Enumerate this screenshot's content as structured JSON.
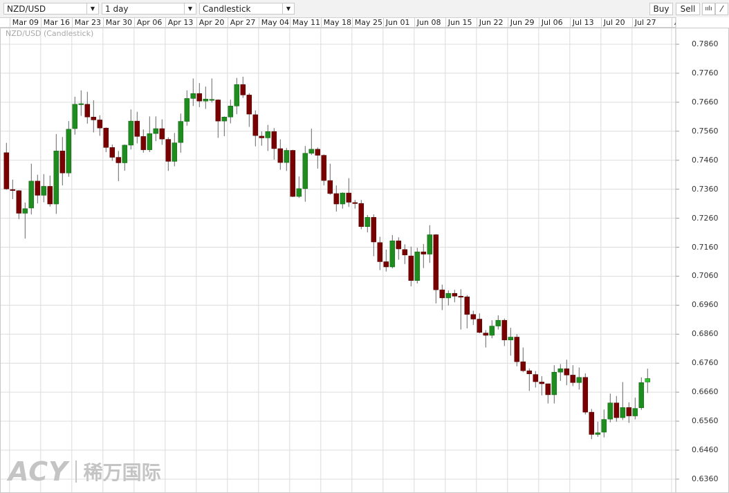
{
  "toolbar": {
    "symbol": "NZD/USD",
    "interval": "1 day",
    "chart_type": "Candlestick",
    "buy_label": "Buy",
    "sell_label": "Sell",
    "indicators_icon": "indicators-icon",
    "draw_icon": "line-draw-icon"
  },
  "date_axis": [
    "Mar 09",
    "Mar 16",
    "Mar 23",
    "Mar 30",
    "Apr 06",
    "Apr 13",
    "Apr 20",
    "Apr 27",
    "May 04",
    "May 11",
    "May 18",
    "May 25",
    "Jun 01",
    "Jun 08",
    "Jun 15",
    "Jun 22",
    "Jun 29",
    "Jul 06",
    "Jul 13",
    "Jul 20",
    "Jul 27",
    "A"
  ],
  "series_title": "NZD/USD (Candlestick)",
  "watermark": {
    "brand": "ACY",
    "chinese": "稀万国际"
  },
  "colors": {
    "up": "#1f8c1f",
    "down": "#780000",
    "last_up": "#2ec42e",
    "wick": "#666666",
    "grid": "#dcdcdc"
  },
  "chart_data": {
    "type": "candlestick",
    "title": "NZD/USD (Candlestick)",
    "ylim": [
      0.633,
      0.791
    ],
    "yticks": [
      "0.7860",
      "0.7760",
      "0.7660",
      "0.7560",
      "0.7460",
      "0.7360",
      "0.7260",
      "0.7160",
      "0.7060",
      "0.6960",
      "0.6860",
      "0.6760",
      "0.6660",
      "0.6560",
      "0.6460",
      "0.6360"
    ],
    "grid": true,
    "ohlc_order": [
      "open",
      "high",
      "low",
      "close"
    ],
    "dates": [
      "Mar 06",
      "Mar 09",
      "Mar 10",
      "Mar 11",
      "Mar 12",
      "Mar 13",
      "Mar 16",
      "Mar 17",
      "Mar 18",
      "Mar 19",
      "Mar 20",
      "Mar 23",
      "Mar 24",
      "Mar 25",
      "Mar 26",
      "Mar 27",
      "Mar 30",
      "Mar 31",
      "Apr 01",
      "Apr 02",
      "Apr 03",
      "Apr 06",
      "Apr 07",
      "Apr 08",
      "Apr 09",
      "Apr 10",
      "Apr 13",
      "Apr 14",
      "Apr 15",
      "Apr 16",
      "Apr 17",
      "Apr 20",
      "Apr 21",
      "Apr 22",
      "Apr 23",
      "Apr 24",
      "Apr 27",
      "Apr 28",
      "Apr 29",
      "Apr 30",
      "May 01",
      "May 04",
      "May 05",
      "May 06",
      "May 07",
      "May 08",
      "May 11",
      "May 12",
      "May 13",
      "May 14",
      "May 15",
      "May 18",
      "May 19",
      "May 20",
      "May 21",
      "May 22",
      "May 25",
      "May 26",
      "May 27",
      "May 28",
      "May 29",
      "Jun 01",
      "Jun 02",
      "Jun 03",
      "Jun 04",
      "Jun 05",
      "Jun 08",
      "Jun 09",
      "Jun 10",
      "Jun 11",
      "Jun 12",
      "Jun 15",
      "Jun 16",
      "Jun 17",
      "Jun 18",
      "Jun 19",
      "Jun 22",
      "Jun 23",
      "Jun 24",
      "Jun 25",
      "Jun 26",
      "Jun 29",
      "Jun 30",
      "Jul 01",
      "Jul 02",
      "Jul 03",
      "Jul 06",
      "Jul 07",
      "Jul 08",
      "Jul 09",
      "Jul 10",
      "Jul 13",
      "Jul 14",
      "Jul 15",
      "Jul 16",
      "Jul 17",
      "Jul 20",
      "Jul 21",
      "Jul 22",
      "Jul 23",
      "Jul 24",
      "Jul 27",
      "Jul 28",
      "Jul 29"
    ],
    "ohlc": [
      [
        0.7486,
        0.752,
        0.7358,
        0.7361
      ],
      [
        0.7359,
        0.7393,
        0.7326,
        0.7358
      ],
      [
        0.7355,
        0.7357,
        0.7257,
        0.7277
      ],
      [
        0.7277,
        0.7314,
        0.719,
        0.7293
      ],
      [
        0.7295,
        0.7448,
        0.7273,
        0.7388
      ],
      [
        0.7388,
        0.741,
        0.7311,
        0.7339
      ],
      [
        0.7339,
        0.7412,
        0.7315,
        0.737
      ],
      [
        0.737,
        0.7407,
        0.73,
        0.7309
      ],
      [
        0.7309,
        0.755,
        0.7275,
        0.7492
      ],
      [
        0.7492,
        0.754,
        0.7373,
        0.7416
      ],
      [
        0.7416,
        0.7595,
        0.7403,
        0.7567
      ],
      [
        0.7569,
        0.7679,
        0.7548,
        0.7653
      ],
      [
        0.7654,
        0.7701,
        0.7613,
        0.7655
      ],
      [
        0.7653,
        0.7696,
        0.7586,
        0.7609
      ],
      [
        0.7609,
        0.7667,
        0.7556,
        0.7599
      ],
      [
        0.7599,
        0.7615,
        0.7544,
        0.7571
      ],
      [
        0.7571,
        0.7573,
        0.7488,
        0.7504
      ],
      [
        0.7504,
        0.7514,
        0.7458,
        0.747
      ],
      [
        0.747,
        0.7492,
        0.7388,
        0.7451
      ],
      [
        0.7451,
        0.7514,
        0.7424,
        0.7512
      ],
      [
        0.7512,
        0.7635,
        0.7497,
        0.7595
      ],
      [
        0.7595,
        0.7627,
        0.7518,
        0.7542
      ],
      [
        0.7542,
        0.7566,
        0.7486,
        0.7496
      ],
      [
        0.7496,
        0.7611,
        0.7488,
        0.7552
      ],
      [
        0.7552,
        0.7611,
        0.7526,
        0.7569
      ],
      [
        0.7569,
        0.7601,
        0.7513,
        0.7533
      ],
      [
        0.7532,
        0.7539,
        0.7423,
        0.7456
      ],
      [
        0.7456,
        0.7554,
        0.7439,
        0.752
      ],
      [
        0.7521,
        0.7621,
        0.7486,
        0.7594
      ],
      [
        0.7594,
        0.7701,
        0.7579,
        0.7673
      ],
      [
        0.7673,
        0.7742,
        0.7647,
        0.769
      ],
      [
        0.769,
        0.7726,
        0.7643,
        0.7664
      ],
      [
        0.7664,
        0.7714,
        0.7637,
        0.7671
      ],
      [
        0.7669,
        0.7742,
        0.7659,
        0.767
      ],
      [
        0.7668,
        0.767,
        0.7537,
        0.7595
      ],
      [
        0.7595,
        0.7611,
        0.7543,
        0.7609
      ],
      [
        0.7609,
        0.7669,
        0.7587,
        0.7647
      ],
      [
        0.7647,
        0.7744,
        0.7619,
        0.7721
      ],
      [
        0.7721,
        0.7748,
        0.7675,
        0.7685
      ],
      [
        0.7685,
        0.7691,
        0.7575,
        0.7619
      ],
      [
        0.7617,
        0.7632,
        0.7508,
        0.7545
      ],
      [
        0.7543,
        0.7559,
        0.751,
        0.7537
      ],
      [
        0.7537,
        0.7582,
        0.7492,
        0.7559
      ],
      [
        0.7559,
        0.7571,
        0.7462,
        0.75
      ],
      [
        0.75,
        0.7532,
        0.7427,
        0.7452
      ],
      [
        0.7452,
        0.7502,
        0.7423,
        0.7494
      ],
      [
        0.7494,
        0.7496,
        0.7333,
        0.7335
      ],
      [
        0.7335,
        0.7404,
        0.733,
        0.7362
      ],
      [
        0.7362,
        0.7509,
        0.7317,
        0.7484
      ],
      [
        0.7484,
        0.7569,
        0.7478,
        0.7498
      ],
      [
        0.7498,
        0.7504,
        0.7431,
        0.7477
      ],
      [
        0.7477,
        0.748,
        0.7373,
        0.739
      ],
      [
        0.739,
        0.7448,
        0.7341,
        0.7345
      ],
      [
        0.7345,
        0.7373,
        0.7283,
        0.7309
      ],
      [
        0.7309,
        0.7349,
        0.7293,
        0.7347
      ],
      [
        0.7347,
        0.7398,
        0.7299,
        0.7315
      ],
      [
        0.7314,
        0.7323,
        0.7293,
        0.7313
      ],
      [
        0.7311,
        0.7323,
        0.7222,
        0.7231
      ],
      [
        0.7231,
        0.7271,
        0.7211,
        0.7263
      ],
      [
        0.7263,
        0.7273,
        0.7129,
        0.7178
      ],
      [
        0.7176,
        0.7196,
        0.7081,
        0.711
      ],
      [
        0.711,
        0.7152,
        0.7076,
        0.7092
      ],
      [
        0.7092,
        0.7202,
        0.7087,
        0.7182
      ],
      [
        0.7182,
        0.7194,
        0.7117,
        0.7154
      ],
      [
        0.7152,
        0.717,
        0.7102,
        0.7133
      ],
      [
        0.713,
        0.7162,
        0.7025,
        0.7045
      ],
      [
        0.7045,
        0.7158,
        0.7035,
        0.7144
      ],
      [
        0.7144,
        0.7171,
        0.7088,
        0.7136
      ],
      [
        0.7136,
        0.7236,
        0.7106,
        0.7203
      ],
      [
        0.7203,
        0.7205,
        0.6966,
        0.7013
      ],
      [
        0.7013,
        0.7031,
        0.6943,
        0.6985
      ],
      [
        0.6985,
        0.7011,
        0.6959,
        0.7001
      ],
      [
        0.7001,
        0.7013,
        0.697,
        0.6991
      ],
      [
        0.6991,
        0.7015,
        0.6876,
        0.699
      ],
      [
        0.6989,
        0.6995,
        0.688,
        0.6928
      ],
      [
        0.6928,
        0.6941,
        0.6892,
        0.6912
      ],
      [
        0.6912,
        0.6932,
        0.6863,
        0.6866
      ],
      [
        0.6864,
        0.6874,
        0.6814,
        0.6856
      ],
      [
        0.6856,
        0.6908,
        0.6846,
        0.6888
      ],
      [
        0.6888,
        0.6925,
        0.6876,
        0.6908
      ],
      [
        0.6908,
        0.6914,
        0.6819,
        0.684
      ],
      [
        0.684,
        0.6882,
        0.6786,
        0.685
      ],
      [
        0.685,
        0.686,
        0.6749,
        0.6765
      ],
      [
        0.6765,
        0.6814,
        0.6729,
        0.6734
      ],
      [
        0.6734,
        0.6742,
        0.6664,
        0.6723
      ],
      [
        0.6721,
        0.6733,
        0.6676,
        0.6696
      ],
      [
        0.6695,
        0.6715,
        0.6649,
        0.6689
      ],
      [
        0.6689,
        0.669,
        0.6621,
        0.6651
      ],
      [
        0.6651,
        0.6753,
        0.6621,
        0.6729
      ],
      [
        0.6729,
        0.6757,
        0.6699,
        0.6741
      ],
      [
        0.6741,
        0.6772,
        0.6684,
        0.6719
      ],
      [
        0.6719,
        0.6753,
        0.6681,
        0.6693
      ],
      [
        0.6693,
        0.6745,
        0.6669,
        0.6711
      ],
      [
        0.6711,
        0.6725,
        0.6583,
        0.6591
      ],
      [
        0.6591,
        0.6602,
        0.6498,
        0.6514
      ],
      [
        0.6514,
        0.6558,
        0.6506,
        0.652
      ],
      [
        0.6522,
        0.66,
        0.6504,
        0.6566
      ],
      [
        0.6567,
        0.6655,
        0.6556,
        0.6623
      ],
      [
        0.6623,
        0.6647,
        0.6558,
        0.6572
      ],
      [
        0.6572,
        0.6695,
        0.6564,
        0.6607
      ],
      [
        0.6607,
        0.6625,
        0.6554,
        0.6578
      ],
      [
        0.6578,
        0.6641,
        0.6566,
        0.6604
      ],
      [
        0.6606,
        0.6711,
        0.6599,
        0.6693
      ],
      [
        0.6695,
        0.6741,
        0.6657,
        0.6707
      ]
    ]
  }
}
